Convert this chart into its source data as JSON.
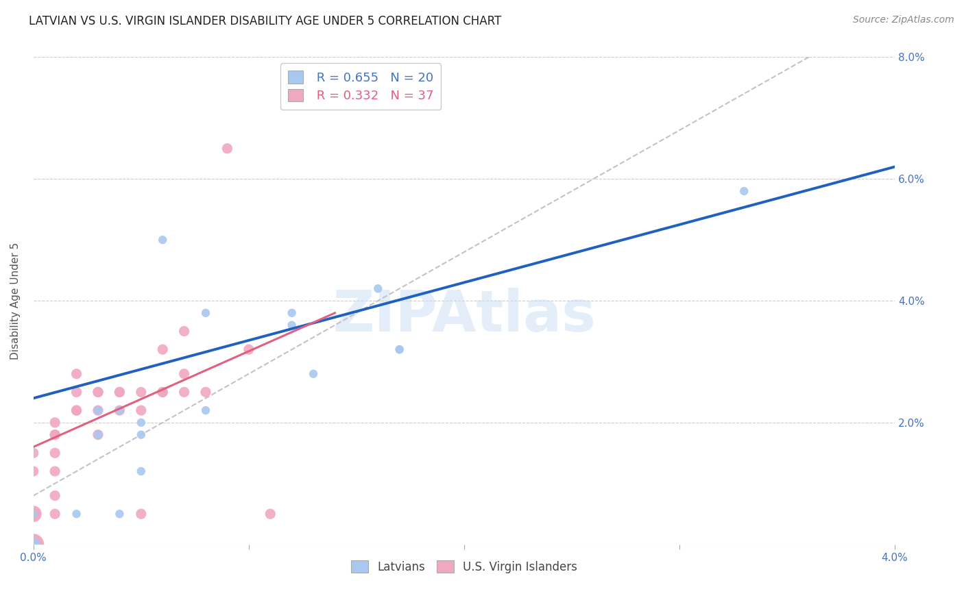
{
  "title": "LATVIAN VS U.S. VIRGIN ISLANDER DISABILITY AGE UNDER 5 CORRELATION CHART",
  "source": "Source: ZipAtlas.com",
  "ylabel": "Disability Age Under 5",
  "xlim": [
    0.0,
    0.04
  ],
  "ylim": [
    0.0,
    0.08
  ],
  "xticks": [
    0.0,
    0.01,
    0.02,
    0.03,
    0.04
  ],
  "yticks": [
    0.0,
    0.02,
    0.04,
    0.06,
    0.08
  ],
  "xtick_labels": [
    "0.0%",
    "",
    "",
    "",
    "4.0%"
  ],
  "ytick_labels_left": [
    "",
    "",
    "",
    "",
    ""
  ],
  "ytick_labels_right": [
    "",
    "2.0%",
    "4.0%",
    "6.0%",
    "8.0%"
  ],
  "legend_R_blue": "R = 0.655",
  "legend_N_blue": "N = 20",
  "legend_R_pink": "R = 0.332",
  "legend_N_pink": "N = 37",
  "legend_label_blue": "Latvians",
  "legend_label_pink": "U.S. Virgin Islanders",
  "blue_color": "#a8c8f0",
  "pink_color": "#f0a8c0",
  "blue_line_color": "#2060c0",
  "pink_line_color": "#e06080",
  "dashed_line_color": "#c8c0c8",
  "watermark": "ZIPAtlas",
  "title_fontsize": 12,
  "axis_label_fontsize": 11,
  "tick_fontsize": 11,
  "blue_scatter": [
    [
      0.0,
      0.0
    ],
    [
      0.0,
      0.005
    ],
    [
      0.002,
      0.005
    ],
    [
      0.003,
      0.022
    ],
    [
      0.003,
      0.018
    ],
    [
      0.004,
      0.005
    ],
    [
      0.004,
      0.022
    ],
    [
      0.005,
      0.018
    ],
    [
      0.005,
      0.02
    ],
    [
      0.005,
      0.012
    ],
    [
      0.006,
      0.05
    ],
    [
      0.008,
      0.038
    ],
    [
      0.008,
      0.022
    ],
    [
      0.012,
      0.038
    ],
    [
      0.012,
      0.036
    ],
    [
      0.013,
      0.028
    ],
    [
      0.016,
      0.042
    ],
    [
      0.017,
      0.032
    ],
    [
      0.017,
      0.032
    ],
    [
      0.033,
      0.058
    ]
  ],
  "pink_scatter": [
    [
      0.0,
      0.0
    ],
    [
      0.0,
      0.0
    ],
    [
      0.0,
      0.005
    ],
    [
      0.0,
      0.005
    ],
    [
      0.0,
      0.012
    ],
    [
      0.0,
      0.015
    ],
    [
      0.001,
      0.005
    ],
    [
      0.001,
      0.008
    ],
    [
      0.001,
      0.012
    ],
    [
      0.001,
      0.015
    ],
    [
      0.001,
      0.018
    ],
    [
      0.001,
      0.018
    ],
    [
      0.001,
      0.02
    ],
    [
      0.002,
      0.022
    ],
    [
      0.002,
      0.022
    ],
    [
      0.002,
      0.025
    ],
    [
      0.002,
      0.028
    ],
    [
      0.003,
      0.018
    ],
    [
      0.003,
      0.022
    ],
    [
      0.003,
      0.025
    ],
    [
      0.003,
      0.025
    ],
    [
      0.004,
      0.022
    ],
    [
      0.004,
      0.025
    ],
    [
      0.004,
      0.025
    ],
    [
      0.005,
      0.005
    ],
    [
      0.005,
      0.022
    ],
    [
      0.005,
      0.025
    ],
    [
      0.006,
      0.025
    ],
    [
      0.006,
      0.025
    ],
    [
      0.006,
      0.032
    ],
    [
      0.007,
      0.025
    ],
    [
      0.007,
      0.028
    ],
    [
      0.007,
      0.035
    ],
    [
      0.008,
      0.025
    ],
    [
      0.009,
      0.065
    ],
    [
      0.01,
      0.032
    ],
    [
      0.011,
      0.005
    ]
  ],
  "blue_sizes": [
    200,
    80,
    80,
    80,
    80,
    80,
    80,
    80,
    80,
    80,
    80,
    80,
    80,
    80,
    80,
    80,
    80,
    80,
    80,
    80
  ],
  "pink_sizes": [
    500,
    400,
    300,
    200,
    120,
    120,
    120,
    120,
    120,
    120,
    120,
    120,
    120,
    120,
    120,
    120,
    120,
    120,
    120,
    120,
    120,
    120,
    120,
    120,
    120,
    120,
    120,
    120,
    120,
    120,
    120,
    120,
    120,
    120,
    120,
    120,
    120
  ],
  "blue_trendline_x": [
    0.0,
    0.04
  ],
  "blue_trendline_y": [
    0.024,
    0.062
  ],
  "pink_trendline_x": [
    0.0,
    0.014
  ],
  "pink_trendline_y": [
    0.016,
    0.038
  ],
  "dashed_line_x": [
    0.0,
    0.04
  ],
  "dashed_line_y": [
    0.008,
    0.088
  ]
}
